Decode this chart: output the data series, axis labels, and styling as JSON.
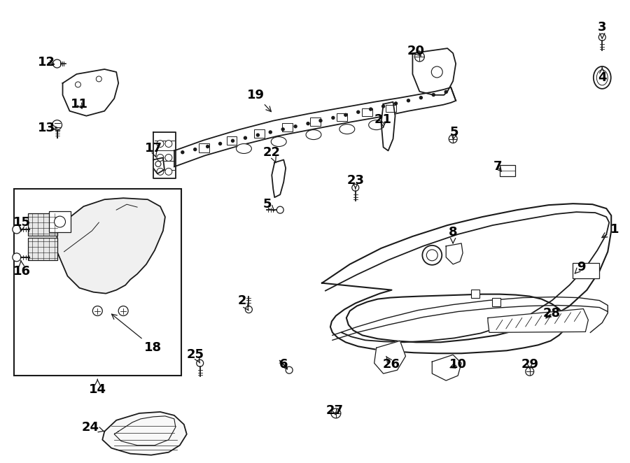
{
  "background_color": "#ffffff",
  "line_color": "#1a1a1a",
  "text_color": "#000000",
  "fig_width": 9.0,
  "fig_height": 6.62,
  "dpi": 100
}
